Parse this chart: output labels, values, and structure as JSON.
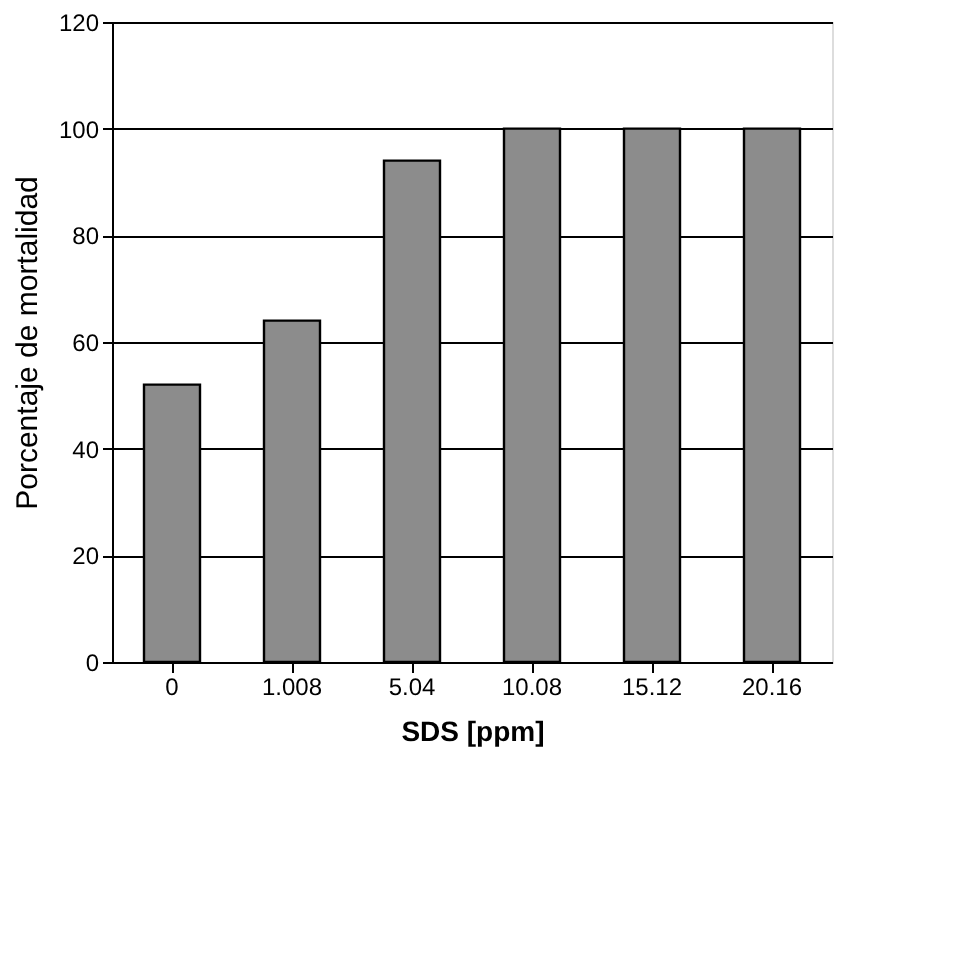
{
  "chart_data": {
    "type": "bar",
    "xlabel": "SDS [ppm]",
    "ylabel": "Porcentaje de mortalidad",
    "categories": [
      "0",
      "1.008",
      "5.04",
      "10.08",
      "15.12",
      "20.16"
    ],
    "values": [
      52,
      64,
      94,
      100,
      100,
      100
    ],
    "color": "#8c8c8c",
    "ylim": [
      0,
      120
    ],
    "yticks": [
      0,
      20,
      40,
      60,
      80,
      100,
      120
    ],
    "grid": "y"
  }
}
